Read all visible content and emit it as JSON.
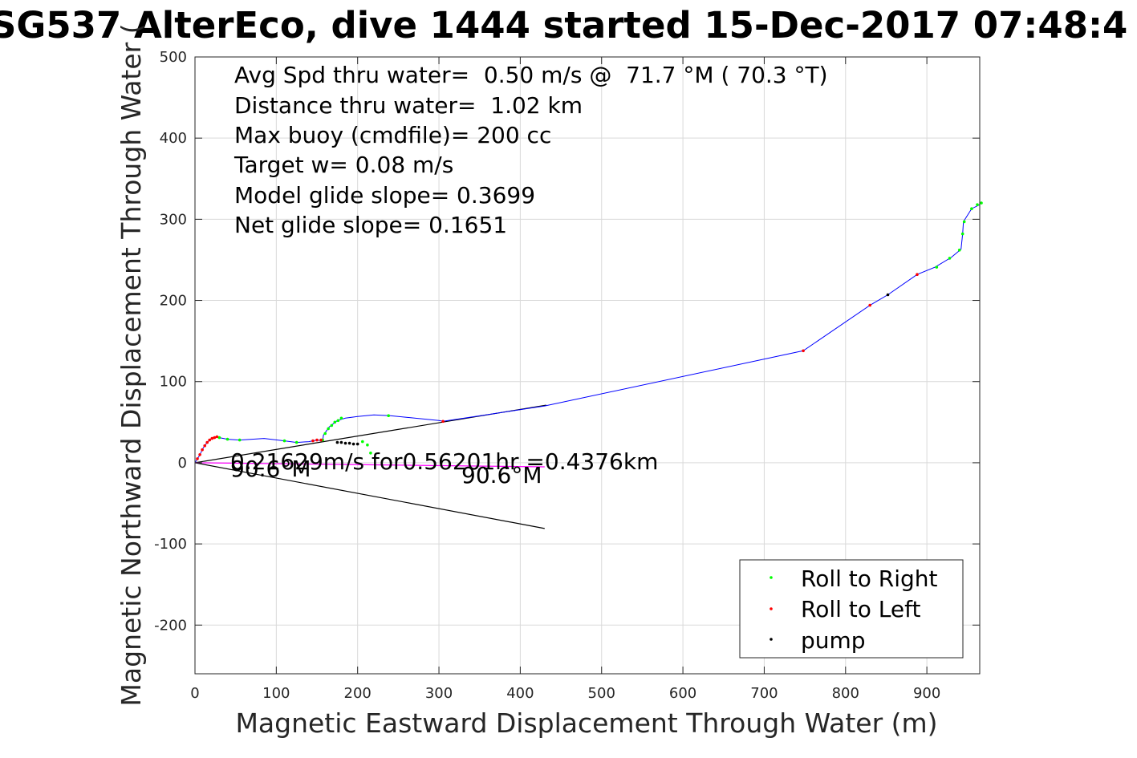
{
  "chart_data": {
    "type": "scatter",
    "title": "SG537 AlterEco, dive 1444 started 15-Dec-2017 07:48:4",
    "xlabel": "Magnetic Eastward Displacement Through Water (m)",
    "ylabel": "Magnetic Northward Displacement Through Water (",
    "xlim": [
      0,
      965
    ],
    "ylim": [
      -260,
      500
    ],
    "xticks": [
      0,
      100,
      200,
      300,
      400,
      500,
      600,
      700,
      800,
      900
    ],
    "yticks": [
      500,
      400,
      300,
      200,
      100,
      0,
      -100,
      -200
    ],
    "grid": true,
    "legend_position": "bottom-right",
    "stats": [
      "Avg Spd thru water=  0.50 m/s @  71.7 °M ( 70.3 °T)",
      "Distance thru water=  1.02 km",
      "Max buoy (cmdfile)= 200 cc",
      "Target w= 0.08 m/s",
      "Model glide slope= 0.3699",
      "Net glide slope= 0.1651"
    ],
    "annotations": {
      "current": "0.21629m/s for0.56201hr =0.4376km",
      "heading_left": "90.6°M",
      "heading_right": "90.6°M"
    },
    "colors": {
      "track": "#0000ff",
      "current_track": "#ff00ff",
      "roll_right": "#00ff00",
      "roll_left": "#ff0000",
      "pump": "#000000",
      "reference_lines": "#000000"
    },
    "track": [
      [
        0,
        0
      ],
      [
        5,
        8
      ],
      [
        10,
        18
      ],
      [
        15,
        25
      ],
      [
        20,
        30
      ],
      [
        25,
        32
      ],
      [
        30,
        31
      ],
      [
        40,
        29
      ],
      [
        55,
        28
      ],
      [
        85,
        30
      ],
      [
        110,
        27
      ],
      [
        125,
        25
      ],
      [
        140,
        26
      ],
      [
        150,
        28
      ],
      [
        157,
        27
      ],
      [
        158,
        34
      ],
      [
        165,
        44
      ],
      [
        175,
        52
      ],
      [
        185,
        55
      ],
      [
        200,
        57
      ],
      [
        220,
        59
      ],
      [
        240,
        58
      ],
      [
        300,
        52
      ],
      [
        305,
        51
      ],
      [
        430,
        70
      ],
      [
        748,
        138
      ],
      [
        830,
        194
      ],
      [
        852,
        207
      ],
      [
        888,
        232
      ],
      [
        910,
        241
      ],
      [
        930,
        253
      ],
      [
        942,
        263
      ],
      [
        944,
        282
      ],
      [
        945,
        297
      ],
      [
        955,
        313
      ],
      [
        965,
        318
      ]
    ],
    "current_track": [
      [
        0,
        0
      ],
      [
        430,
        -5
      ]
    ],
    "reference_lines": [
      [
        [
          0,
          0
        ],
        [
          432,
          71
        ]
      ],
      [
        [
          0,
          0
        ],
        [
          430,
          -81
        ]
      ]
    ],
    "series": [
      {
        "name": "Roll to Right",
        "points": [
          [
            30,
            31
          ],
          [
            40,
            29
          ],
          [
            55,
            28
          ],
          [
            110,
            27
          ],
          [
            125,
            25
          ],
          [
            157,
            28
          ],
          [
            160,
            36
          ],
          [
            164,
            42
          ],
          [
            168,
            46
          ],
          [
            172,
            50
          ],
          [
            176,
            52
          ],
          [
            180,
            55
          ],
          [
            238,
            58
          ],
          [
            206,
            26
          ],
          [
            212,
            22
          ],
          [
            216,
            12
          ],
          [
            912,
            241
          ],
          [
            928,
            252
          ],
          [
            940,
            262
          ],
          [
            944,
            282
          ],
          [
            946,
            297
          ],
          [
            955,
            313
          ],
          [
            962,
            318
          ],
          [
            967,
            320
          ]
        ]
      },
      {
        "name": "Roll to Left",
        "points": [
          [
            3,
            5
          ],
          [
            6,
            10
          ],
          [
            9,
            16
          ],
          [
            12,
            21
          ],
          [
            15,
            25
          ],
          [
            18,
            28
          ],
          [
            21,
            30
          ],
          [
            24,
            31
          ],
          [
            27,
            32
          ],
          [
            145,
            27
          ],
          [
            150,
            28
          ],
          [
            155,
            28
          ],
          [
            305,
            51
          ],
          [
            748,
            138
          ],
          [
            830,
            194
          ],
          [
            888,
            232
          ]
        ]
      },
      {
        "name": "pump",
        "points": [
          [
            175,
            25
          ],
          [
            180,
            25
          ],
          [
            185,
            24
          ],
          [
            190,
            24
          ],
          [
            195,
            23
          ],
          [
            200,
            23
          ],
          [
            852,
            207
          ]
        ]
      }
    ]
  }
}
